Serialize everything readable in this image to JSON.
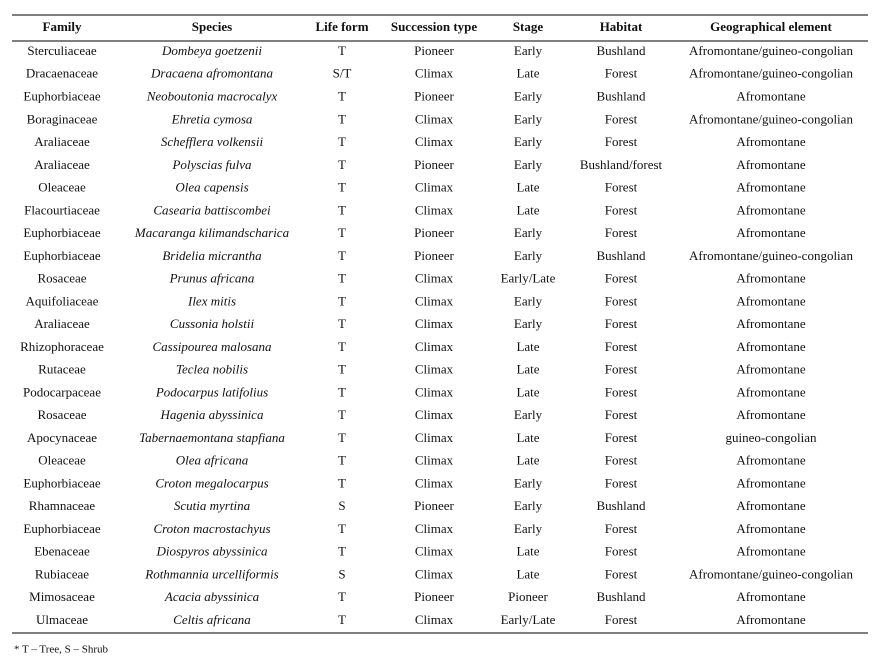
{
  "table": {
    "headers": [
      "Family",
      "Species",
      "Life form",
      "Succession type",
      "Stage",
      "Habitat",
      "Geographical element"
    ],
    "rows": [
      [
        "Sterculiaceae",
        "Dombeya goetzenii",
        "T",
        "Pioneer",
        "Early",
        "Bushland",
        "Afromontane/guineo-congolian"
      ],
      [
        "Dracaenaceae",
        "Dracaena afromontana",
        "S/T",
        "Climax",
        "Late",
        "Forest",
        "Afromontane/guineo-congolian"
      ],
      [
        "Euphorbiaceae",
        "Neoboutonia macrocalyx",
        "T",
        "Pioneer",
        "Early",
        "Bushland",
        "Afromontane"
      ],
      [
        "Boraginaceae",
        "Ehretia cymosa",
        "T",
        "Climax",
        "Early",
        "Forest",
        "Afromontane/guineo-congolian"
      ],
      [
        "Araliaceae",
        "Schefflera volkensii",
        "T",
        "Climax",
        "Early",
        "Forest",
        "Afromontane"
      ],
      [
        "Araliaceae",
        "Polyscias fulva",
        "T",
        "Pioneer",
        "Early",
        "Bushland/forest",
        "Afromontane"
      ],
      [
        "Oleaceae",
        "Olea capensis",
        "T",
        "Climax",
        "Late",
        "Forest",
        "Afromontane"
      ],
      [
        "Flacourtiaceae",
        "Casearia battiscombei",
        "T",
        "Climax",
        "Late",
        "Forest",
        "Afromontane"
      ],
      [
        "Euphorbiaceae",
        "Macaranga kilimandscharica",
        "T",
        "Pioneer",
        "Early",
        "Forest",
        "Afromontane"
      ],
      [
        "Euphorbiaceae",
        "Bridelia micrantha",
        "T",
        "Pioneer",
        "Early",
        "Bushland",
        "Afromontane/guineo-congolian"
      ],
      [
        "Rosaceae",
        "Prunus africana",
        "T",
        "Climax",
        "Early/Late",
        "Forest",
        "Afromontane"
      ],
      [
        "Aquifoliaceae",
        "Ilex mitis",
        "T",
        "Climax",
        "Early",
        "Forest",
        "Afromontane"
      ],
      [
        "Araliaceae",
        "Cussonia holstii",
        "T",
        "Climax",
        "Early",
        "Forest",
        "Afromontane"
      ],
      [
        "Rhizophoraceae",
        "Cassipourea malosana",
        "T",
        "Climax",
        "Late",
        "Forest",
        "Afromontane"
      ],
      [
        "Rutaceae",
        "Teclea nobilis",
        "T",
        "Climax",
        "Late",
        "Forest",
        "Afromontane"
      ],
      [
        "Podocarpaceae",
        "Podocarpus latifolius",
        "T",
        "Climax",
        "Late",
        "Forest",
        "Afromontane"
      ],
      [
        "Rosaceae",
        "Hagenia abyssinica",
        "T",
        "Climax",
        "Early",
        "Forest",
        "Afromontane"
      ],
      [
        "Apocynaceae",
        "Tabernaemontana stapfiana",
        "T",
        "Climax",
        "Late",
        "Forest",
        "guineo-congolian"
      ],
      [
        "Oleaceae",
        "Olea africana",
        "T",
        "Climax",
        "Late",
        "Forest",
        "Afromontane"
      ],
      [
        "Euphorbiaceae",
        "Croton megalocarpus",
        "T",
        "Climax",
        "Early",
        "Forest",
        "Afromontane"
      ],
      [
        "Rhamnaceae",
        "Scutia myrtina",
        "S",
        "Pioneer",
        "Early",
        "Bushland",
        "Afromontane"
      ],
      [
        "Euphorbiaceae",
        "Croton macrostachyus",
        "T",
        "Climax",
        "Early",
        "Forest",
        "Afromontane"
      ],
      [
        "Ebenaceae",
        "Diospyros abyssinica",
        "T",
        "Climax",
        "Late",
        "Forest",
        "Afromontane"
      ],
      [
        "Rubiaceae",
        "Rothmannia urcelliformis",
        "S",
        "Climax",
        "Late",
        "Forest",
        "Afromontane/guineo-congolian"
      ],
      [
        "Mimosaceae",
        "Acacia abyssinica",
        "T",
        "Pioneer",
        "Pioneer",
        "Bushland",
        "Afromontane"
      ],
      [
        "Ulmaceae",
        "Celtis africana",
        "T",
        "Climax",
        "Early/Late",
        "Forest",
        "Afromontane"
      ]
    ],
    "footnote": "* T – Tree, S – Shrub"
  }
}
